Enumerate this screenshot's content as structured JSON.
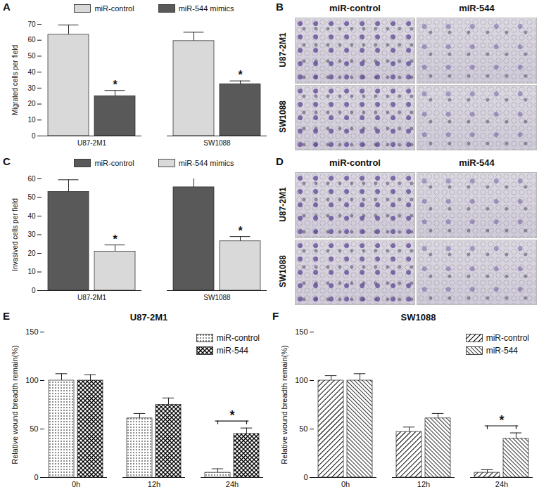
{
  "chart_data": [
    {
      "type": "bar",
      "panel": "A",
      "ylabel": "Migrated cells per field",
      "categories": [
        "U87-2M1",
        "SW1088"
      ],
      "series": [
        {
          "name": "miR-control",
          "color": "#d9d9d9",
          "values": [
            63.5,
            59.5
          ],
          "errors": [
            6,
            5.5
          ]
        },
        {
          "name": "miR-544 mimics",
          "color": "#595959",
          "values": [
            25,
            32.5
          ],
          "errors": [
            3.5,
            2
          ]
        }
      ],
      "ylim": [
        0,
        70
      ],
      "yticks": [
        0,
        10,
        20,
        30,
        40,
        50,
        60,
        70
      ],
      "legend": "top",
      "annotations": [
        {
          "text": "*",
          "category": "U87-2M1",
          "series": "miR-544 mimics"
        },
        {
          "text": "*",
          "category": "SW1088",
          "series": "miR-544 mimics"
        }
      ]
    },
    {
      "type": "image_grid",
      "panel": "B",
      "columns": [
        "miR-control",
        "miR-544"
      ],
      "rows": [
        "U87-2M1",
        "SW1088"
      ]
    },
    {
      "type": "bar",
      "panel": "C",
      "ylabel": "Invasived cells per field",
      "categories": [
        "U87-2M1",
        "SW1088"
      ],
      "series": [
        {
          "name": "miR-control",
          "color": "#595959",
          "values": [
            53,
            55.5
          ],
          "errors": [
            6.5,
            6
          ]
        },
        {
          "name": "miR-544 mimics",
          "color": "#d9d9d9",
          "values": [
            21,
            26.5
          ],
          "errors": [
            3.5,
            2.5
          ]
        }
      ],
      "ylim": [
        0,
        60
      ],
      "yticks": [
        0,
        10,
        20,
        30,
        40,
        50,
        60
      ],
      "legend": "top",
      "annotations": [
        {
          "text": "*",
          "category": "U87-2M1",
          "series": "miR-544 mimics"
        },
        {
          "text": "*",
          "category": "SW1088",
          "series": "miR-544 mimics"
        }
      ]
    },
    {
      "type": "image_grid",
      "panel": "D",
      "columns": [
        "miR-control",
        "miR-544"
      ],
      "rows": [
        "U87-2M1",
        "SW1088"
      ]
    },
    {
      "type": "bar",
      "panel": "E",
      "title": "U87-2M1",
      "ylabel": "Relative wound breadth remain(%)",
      "categories": [
        "0h",
        "12h",
        "24h"
      ],
      "series": [
        {
          "name": "miR-control",
          "color": "#000000",
          "values": [
            100,
            61,
            5
          ],
          "errors": [
            7,
            5,
            4
          ]
        },
        {
          "name": "miR-544",
          "color": "#000000",
          "values": [
            100,
            75,
            45
          ],
          "errors": [
            6,
            7,
            6
          ]
        }
      ],
      "ylim": [
        0,
        150
      ],
      "yticks": [
        0,
        50,
        100,
        150
      ],
      "legend": "upper right",
      "annotations": [
        {
          "text": "*",
          "category": "24h"
        }
      ]
    },
    {
      "type": "bar",
      "panel": "F",
      "title": "SW1088",
      "ylabel": "Relative wound breadth remain(%)",
      "categories": [
        "0h",
        "12h",
        "24h"
      ],
      "series": [
        {
          "name": "miR-control",
          "color": "#000000",
          "values": [
            100,
            47,
            5
          ],
          "errors": [
            5,
            5,
            3
          ]
        },
        {
          "name": "miR-544",
          "color": "#000000",
          "values": [
            100,
            61,
            40
          ],
          "errors": [
            7,
            5,
            6
          ]
        }
      ],
      "ylim": [
        0,
        150
      ],
      "yticks": [
        0,
        50,
        100,
        150
      ],
      "legend": "upper right",
      "annotations": [
        {
          "text": "*",
          "category": "24h"
        }
      ]
    }
  ]
}
